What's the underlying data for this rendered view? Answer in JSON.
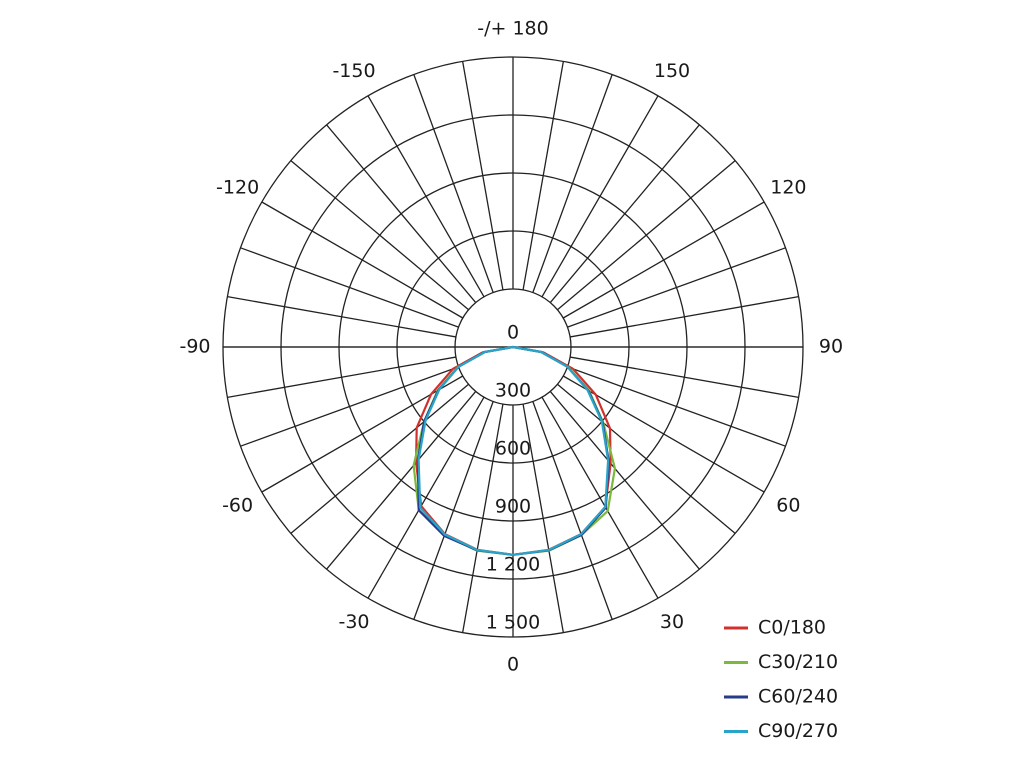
{
  "chart_data": {
    "type": "polar",
    "x": [
      -90,
      -80,
      -70,
      -60,
      -50,
      -40,
      -30,
      -20,
      -10,
      0,
      10,
      20,
      30,
      40,
      50,
      60,
      70,
      80,
      90
    ],
    "series": [
      {
        "name": "C0/180",
        "color": "#d0312d",
        "values": [
          0,
          160,
          330,
          490,
          650,
          780,
          950,
          1030,
          1065,
          1075,
          1065,
          1030,
          955,
          785,
          655,
          495,
          330,
          160,
          0
        ]
      },
      {
        "name": "C30/210",
        "color": "#7cb83e",
        "values": [
          0,
          145,
          305,
          450,
          600,
          800,
          975,
          1035,
          1070,
          1075,
          1070,
          1035,
          980,
          820,
          610,
          455,
          305,
          145,
          0
        ]
      },
      {
        "name": "C60/240",
        "color": "#283a8c",
        "values": [
          0,
          150,
          300,
          445,
          600,
          765,
          975,
          1040,
          1068,
          1075,
          1068,
          1035,
          960,
          770,
          605,
          450,
          300,
          150,
          0
        ]
      },
      {
        "name": "C90/270",
        "color": "#2aa3c8",
        "values": [
          0,
          148,
          300,
          440,
          590,
          760,
          960,
          1032,
          1066,
          1075,
          1066,
          1030,
          955,
          765,
          600,
          445,
          300,
          148,
          0
        ]
      }
    ],
    "rlim": [
      0,
      1500
    ],
    "rticks": [
      0,
      300,
      600,
      900,
      {
        "value": 1200,
        "label": "1 200"
      },
      {
        "value": 1500,
        "label": "1 500"
      }
    ],
    "xticks": [
      -150,
      -120,
      -90,
      -60,
      -30,
      0,
      30,
      60,
      90,
      120,
      150,
      {
        "value": 180,
        "label": "-/+ 180"
      }
    ],
    "legend": "lower right"
  }
}
